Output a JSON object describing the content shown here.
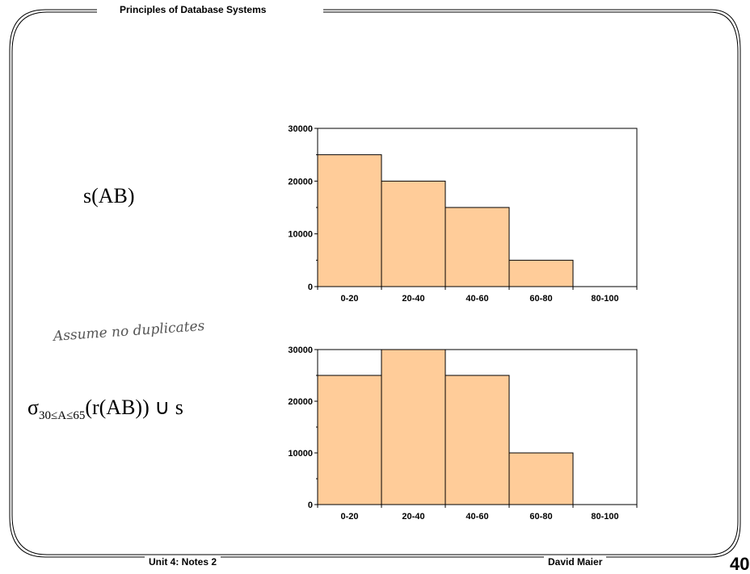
{
  "header": {
    "title": "Principles of Database Systems"
  },
  "footer": {
    "left": "Unit 4: Notes 2",
    "right": "David Maier",
    "page_number": "40"
  },
  "formulas": {
    "top": "s(AB)",
    "bottom_sigma": "σ",
    "bottom_sub": "30≤A≤65",
    "bottom_rest": "(r(AB)) ∪ s"
  },
  "annotation": "Assume no duplicates",
  "chart_data": [
    {
      "type": "bar",
      "categories": [
        "0-20",
        "20-40",
        "40-60",
        "60-80",
        "80-100"
      ],
      "values": [
        25000,
        20000,
        15000,
        5000,
        0
      ],
      "yticks": [
        0,
        10000,
        20000,
        30000
      ],
      "ylim": [
        0,
        30000
      ],
      "colors": {
        "bar": "#ffcc99",
        "edge": "#000000"
      }
    },
    {
      "type": "bar",
      "categories": [
        "0-20",
        "20-40",
        "40-60",
        "60-80",
        "80-100"
      ],
      "values": [
        25000,
        30000,
        25000,
        10000,
        0
      ],
      "yticks": [
        0,
        10000,
        20000,
        30000
      ],
      "ylim": [
        0,
        30000
      ],
      "colors": {
        "bar": "#ffcc99",
        "edge": "#000000"
      }
    }
  ]
}
